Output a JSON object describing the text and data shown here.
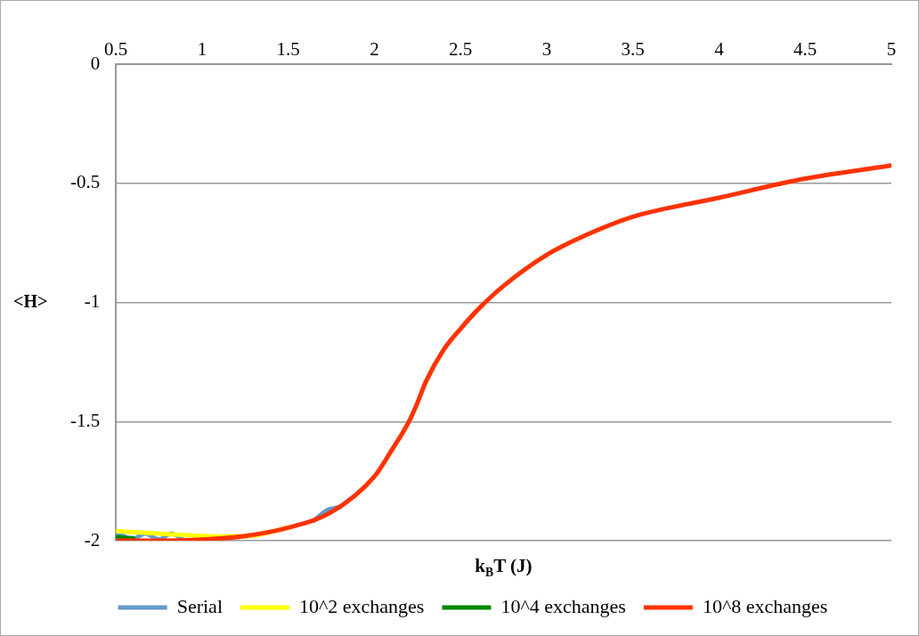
{
  "chart_data": {
    "type": "line",
    "xlabel": "k$_{B}$T (J)",
    "ylabel": "<H>",
    "xlim": [
      0.5,
      5
    ],
    "xticks": [
      {
        "value": 0.5,
        "label": "0.5"
      },
      1,
      1.5,
      2,
      2.5,
      3,
      3.5,
      4,
      4.5,
      5
    ],
    "ylim": [
      -2,
      0
    ],
    "yticks": [
      -2,
      -1.5,
      -1,
      -0.5,
      0
    ],
    "grid": "y",
    "legend": "bottom",
    "marker": "none",
    "line_style": "solid",
    "series": [
      {
        "name": "Serial",
        "color": "#6699cc",
        "x": [
          0.5,
          0.51,
          0.59,
          0.67,
          0.75,
          0.82,
          0.88,
          1.0,
          1.25,
          1.5,
          1.65,
          1.73,
          1.8
        ],
        "values": [
          -1.985,
          -1.97,
          -1.995,
          -1.97,
          -1.995,
          -1.97,
          -1.99,
          null,
          null,
          null,
          -1.915,
          -1.87,
          -1.86
        ]
      },
      {
        "name": "10^2 exchanges",
        "color": "#ffff00",
        "x": [
          0.5,
          0.75,
          1.0,
          1.25,
          1.5
        ],
        "values": [
          -1.96,
          -1.97,
          -1.98,
          -1.982,
          -1.945
        ]
      },
      {
        "name": "10^4 exchanges",
        "color": "#008800",
        "x": [
          0.5,
          0.6
        ],
        "values": [
          -1.985,
          -1.99
        ]
      },
      {
        "name": "10^8 exchanges",
        "color": "#ff3300",
        "x": [
          0.5,
          0.75,
          1.0,
          1.25,
          1.5,
          1.75,
          2.0,
          2.1,
          2.2,
          2.25,
          2.3,
          2.4,
          2.5,
          2.6,
          2.75,
          3.0,
          3.25,
          3.5,
          4.0,
          4.5,
          5.0
        ],
        "values": [
          -2.0,
          -2.0,
          -1.995,
          -1.98,
          -1.945,
          -1.88,
          -1.73,
          -1.62,
          -1.5,
          -1.42,
          -1.33,
          -1.2,
          -1.11,
          -1.03,
          -0.93,
          -0.8,
          -0.71,
          -0.64,
          -0.56,
          -0.48,
          -0.425
        ]
      }
    ]
  }
}
